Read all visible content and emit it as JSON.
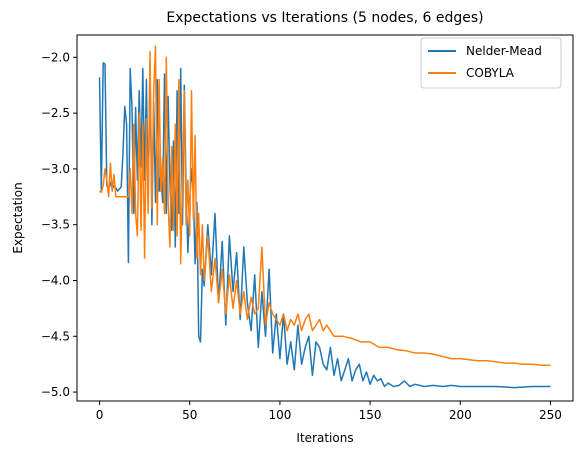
{
  "chart_data": {
    "type": "line",
    "title": "Expectations vs Iterations (5 nodes, 6 edges)",
    "xlabel": "Iterations",
    "ylabel": "Expectation",
    "xlim": [
      -12.5,
      262.5
    ],
    "ylim": [
      -5.08,
      -1.8
    ],
    "xticks": [
      0,
      50,
      100,
      150,
      200,
      250
    ],
    "yticks": [
      -5.0,
      -4.5,
      -4.0,
      -3.5,
      -3.0,
      -2.5,
      -2.0
    ],
    "xtick_labels": [
      "0",
      "50",
      "100",
      "150",
      "200",
      "250"
    ],
    "ytick_labels": [
      "−5.0",
      "−4.5",
      "−4.0",
      "−3.5",
      "−3.0",
      "−2.5",
      "−2.0"
    ],
    "grid": false,
    "legend_position": "top-right",
    "series": [
      {
        "name": "Nelder-Mead",
        "color": "#1f77b4",
        "x": [
          0,
          1,
          2,
          3,
          4,
          5,
          6,
          7,
          8,
          9,
          10,
          11,
          12,
          13,
          14,
          15,
          16,
          17,
          18,
          19,
          20,
          21,
          22,
          23,
          24,
          25,
          26,
          27,
          28,
          29,
          30,
          31,
          32,
          33,
          34,
          35,
          36,
          37,
          38,
          39,
          40,
          41,
          42,
          43,
          44,
          45,
          46,
          47,
          48,
          49,
          50,
          51,
          52,
          53,
          54,
          55,
          56,
          57,
          58,
          60,
          62,
          64,
          66,
          68,
          70,
          72,
          74,
          76,
          78,
          80,
          82,
          84,
          86,
          88,
          90,
          92,
          94,
          96,
          98,
          100,
          102,
          104,
          106,
          108,
          110,
          112,
          114,
          116,
          118,
          120,
          122,
          124,
          126,
          128,
          130,
          132,
          134,
          136,
          138,
          140,
          142,
          144,
          146,
          148,
          150,
          152,
          154,
          156,
          158,
          160,
          163,
          166,
          169,
          172,
          175,
          180,
          185,
          190,
          195,
          200,
          210,
          220,
          230,
          240,
          250
        ],
        "values": [
          -2.18,
          -3.2,
          -2.05,
          -2.06,
          -3.15,
          -3.18,
          -3.12,
          -3.18,
          -3.15,
          -3.17,
          -3.2,
          -3.18,
          -3.16,
          -2.85,
          -2.44,
          -2.6,
          -3.84,
          -2.1,
          -2.45,
          -3.4,
          -2.45,
          -3.1,
          -2.3,
          -2.98,
          -2.1,
          -3.1,
          -2.2,
          -3.3,
          -2.05,
          -3.5,
          -2.4,
          -3.3,
          -2.2,
          -3.2,
          -3.05,
          -3.3,
          -2.15,
          -3.4,
          -2.35,
          -3.1,
          -3.55,
          -2.75,
          -3.7,
          -2.3,
          -3.4,
          -2.1,
          -3.5,
          -2.25,
          -3.2,
          -3.75,
          -3.3,
          -3.0,
          -3.2,
          -3.85,
          -3.3,
          -4.5,
          -4.55,
          -3.9,
          -4.05,
          -3.5,
          -3.95,
          -3.4,
          -4.2,
          -3.65,
          -4.4,
          -3.6,
          -4.1,
          -3.75,
          -4.35,
          -3.7,
          -4.2,
          -4.45,
          -3.95,
          -4.6,
          -4.1,
          -4.5,
          -3.9,
          -4.65,
          -4.3,
          -4.7,
          -4.3,
          -4.75,
          -4.55,
          -4.8,
          -4.4,
          -4.75,
          -4.6,
          -4.5,
          -4.85,
          -4.55,
          -4.6,
          -4.75,
          -4.8,
          -4.6,
          -4.85,
          -4.7,
          -4.9,
          -4.8,
          -4.7,
          -4.9,
          -4.8,
          -4.75,
          -4.9,
          -4.82,
          -4.93,
          -4.85,
          -4.9,
          -4.88,
          -4.95,
          -4.92,
          -4.95,
          -4.94,
          -4.9,
          -4.95,
          -4.93,
          -4.95,
          -4.94,
          -4.95,
          -4.94,
          -4.95,
          -4.95,
          -4.95,
          -4.96,
          -4.95,
          -4.95
        ]
      },
      {
        "name": "COBYLA",
        "color": "#ff7f0e",
        "x": [
          0,
          1,
          2,
          3,
          4,
          5,
          6,
          7,
          8,
          9,
          10,
          11,
          12,
          13,
          14,
          15,
          16,
          17,
          18,
          19,
          20,
          21,
          22,
          23,
          24,
          25,
          26,
          27,
          28,
          29,
          30,
          31,
          32,
          33,
          34,
          35,
          36,
          37,
          38,
          39,
          40,
          41,
          42,
          43,
          44,
          45,
          46,
          47,
          48,
          49,
          50,
          51,
          52,
          53,
          54,
          55,
          56,
          57,
          58,
          60,
          62,
          64,
          66,
          68,
          70,
          72,
          74,
          76,
          78,
          80,
          82,
          84,
          86,
          88,
          90,
          92,
          94,
          96,
          98,
          100,
          102,
          104,
          106,
          108,
          110,
          112,
          114,
          116,
          118,
          120,
          122,
          124,
          126,
          128,
          130,
          135,
          140,
          145,
          150,
          155,
          160,
          165,
          170,
          175,
          180,
          185,
          190,
          195,
          200,
          205,
          210,
          215,
          220,
          225,
          230,
          235,
          240,
          245,
          250
        ],
        "values": [
          -3.2,
          -3.21,
          -3.15,
          -3.0,
          -3.1,
          -3.25,
          -2.95,
          -3.2,
          -3.05,
          -3.25,
          -3.25,
          -3.25,
          -3.25,
          -3.25,
          -3.25,
          -3.25,
          -3.25,
          -3.0,
          -3.4,
          -2.6,
          -3.4,
          -3.6,
          -2.5,
          -3.55,
          -2.6,
          -3.8,
          -2.55,
          -3.4,
          -1.95,
          -3.35,
          -2.3,
          -1.9,
          -3.5,
          -2.2,
          -3.2,
          -2.9,
          -3.4,
          -2.0,
          -3.3,
          -3.7,
          -2.8,
          -3.55,
          -2.6,
          -3.6,
          -2.2,
          -3.85,
          -3.1,
          -2.3,
          -3.5,
          -3.1,
          -3.6,
          -2.3,
          -3.45,
          -2.7,
          -3.8,
          -3.4,
          -3.95,
          -3.5,
          -4.0,
          -3.6,
          -4.1,
          -3.8,
          -4.2,
          -3.9,
          -4.3,
          -3.95,
          -4.25,
          -4.0,
          -4.3,
          -4.1,
          -4.35,
          -4.15,
          -4.3,
          -4.25,
          -3.7,
          -4.4,
          -4.2,
          -4.3,
          -4.35,
          -4.4,
          -4.3,
          -4.45,
          -4.35,
          -4.4,
          -4.3,
          -4.45,
          -4.35,
          -4.3,
          -4.45,
          -4.4,
          -4.35,
          -4.45,
          -4.4,
          -4.45,
          -4.5,
          -4.5,
          -4.52,
          -4.55,
          -4.55,
          -4.6,
          -4.6,
          -4.62,
          -4.63,
          -4.65,
          -4.65,
          -4.66,
          -4.68,
          -4.7,
          -4.7,
          -4.71,
          -4.72,
          -4.72,
          -4.73,
          -4.74,
          -4.74,
          -4.75,
          -4.75,
          -4.76,
          -4.76
        ]
      }
    ]
  }
}
